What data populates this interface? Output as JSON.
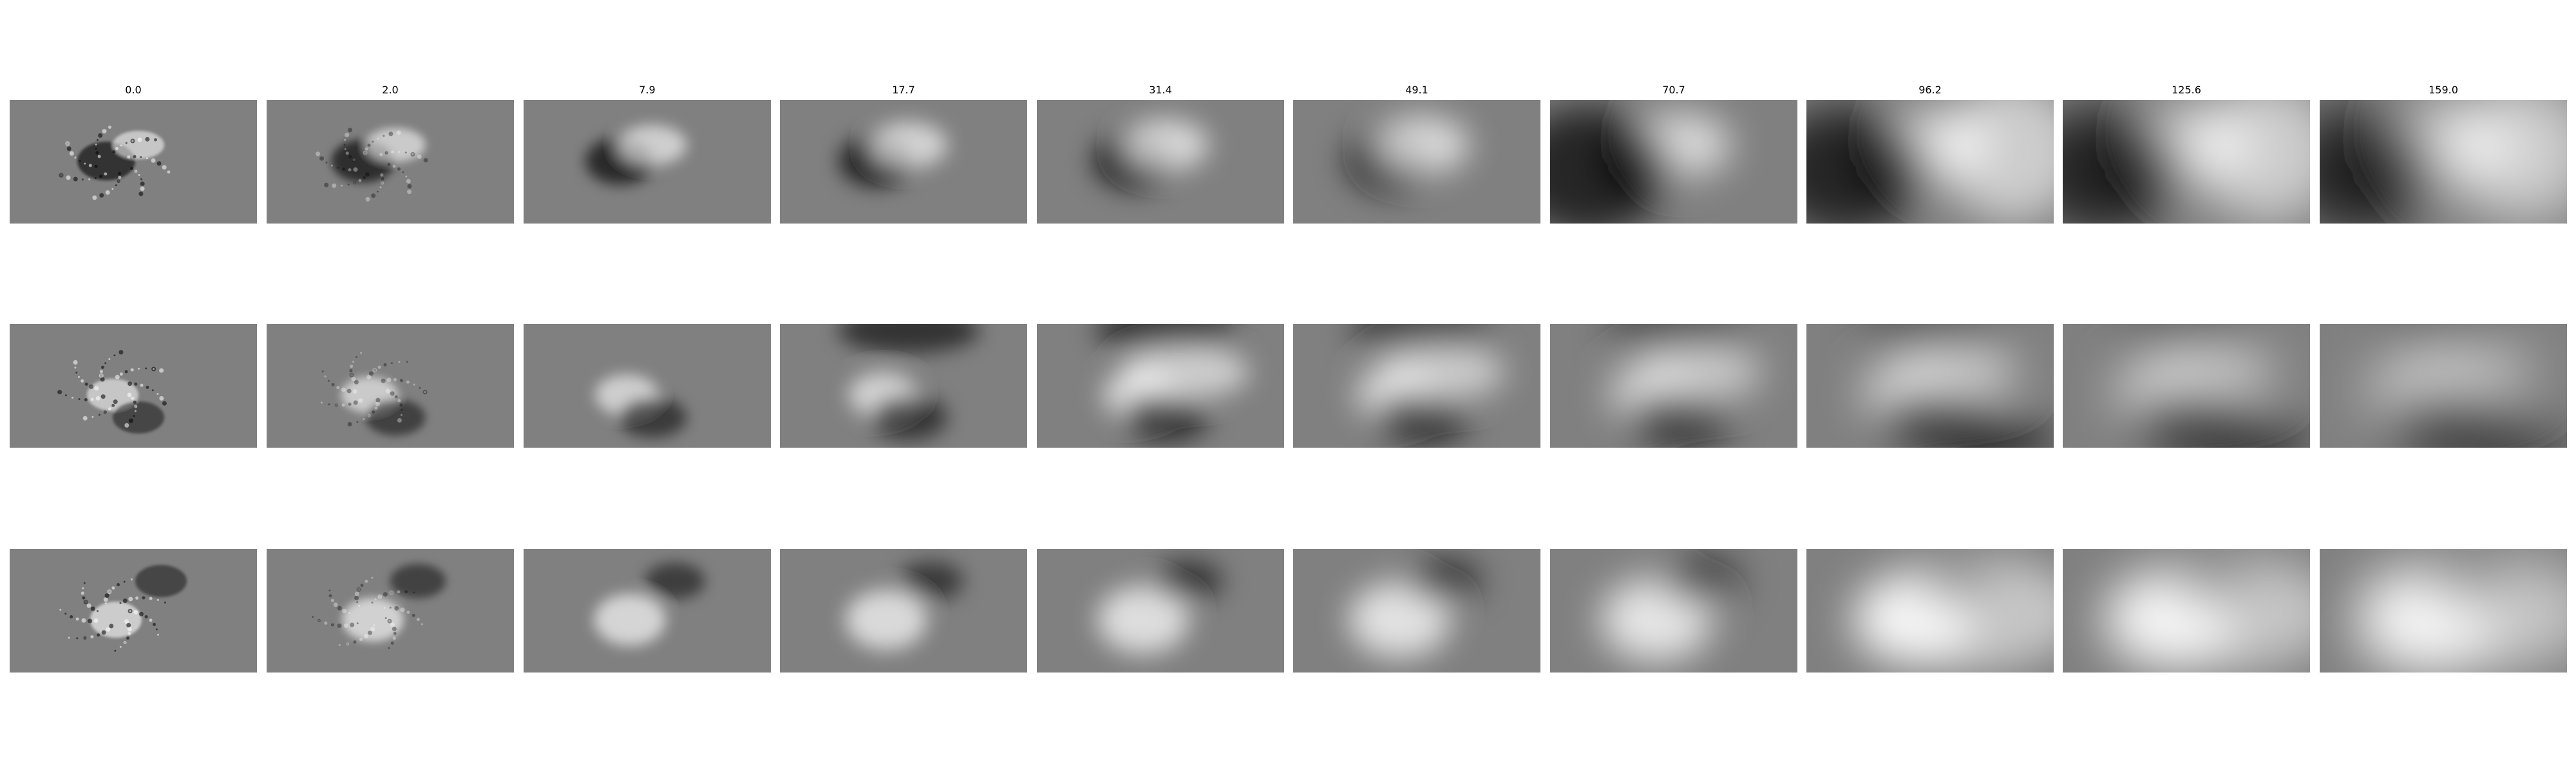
{
  "figure": {
    "column_titles": [
      "0.0",
      "2.0",
      "7.9",
      "17.7",
      "31.4",
      "49.1",
      "70.7",
      "96.2",
      "125.6",
      "159.0"
    ],
    "rows": [
      {
        "id": "row-1"
      },
      {
        "id": "row-2"
      },
      {
        "id": "row-3"
      }
    ],
    "colors": {
      "background_gray": "#808080",
      "light": "#ffffff",
      "dark": "#000000"
    }
  }
}
